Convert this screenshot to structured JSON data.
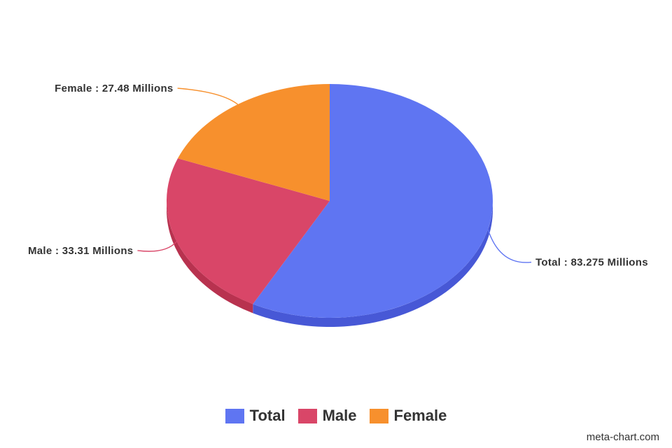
{
  "chart_data": {
    "type": "pie",
    "title": "",
    "three_d": true,
    "legend_position": "bottom",
    "slices": [
      {
        "name": "Total",
        "value": 83.275,
        "label": "Total : 83.275 Millions",
        "color": "#5f75f2",
        "side_color": "#4758d6"
      },
      {
        "name": "Male",
        "value": 33.31,
        "label": "Male : 33.31 Millions",
        "color": "#d94668",
        "side_color": "#b8324f"
      },
      {
        "name": "Female",
        "value": 27.48,
        "label": "Female : 27.48 Millions",
        "color": "#f7902d",
        "side_color": "#d6761c"
      }
    ]
  },
  "legend": {
    "items": [
      {
        "label": "Total",
        "color": "#5f75f2"
      },
      {
        "label": "Male",
        "color": "#d94668"
      },
      {
        "label": "Female",
        "color": "#f7902d"
      }
    ]
  },
  "credit": "meta-chart.com"
}
